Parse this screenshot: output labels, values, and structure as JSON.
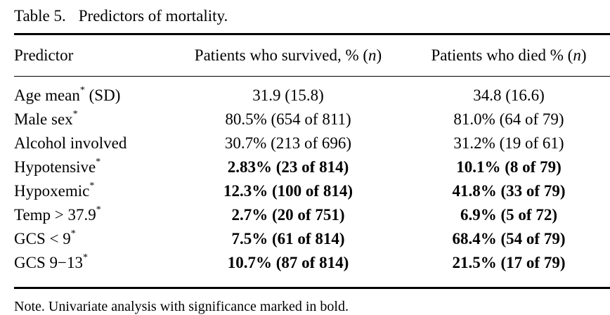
{
  "caption": {
    "label": "Table 5.",
    "title": "Predictors of mortality."
  },
  "header": {
    "predictor": "Predictor",
    "survived_text": "Patients who survived, % (",
    "survived_n": "n",
    "survived_close": ")",
    "died_text": "Patients who died % (",
    "died_n": "n",
    "died_close": ")"
  },
  "rows": [
    {
      "label": "Age mean",
      "mark": "*",
      "suffix": " (SD)",
      "survived": "31.9 (15.8)",
      "died": "34.8 (16.6)",
      "bold": false
    },
    {
      "label": "Male sex",
      "mark": "*",
      "suffix": "",
      "survived": "80.5% (654 of 811)",
      "died": "81.0% (64 of 79)",
      "bold": false
    },
    {
      "label": "Alcohol involved",
      "mark": "",
      "suffix": "",
      "survived": "30.7% (213 of 696)",
      "died": "31.2% (19 of 61)",
      "bold": false
    },
    {
      "label": "Hypotensive",
      "mark": "*",
      "suffix": "",
      "survived": "2.83% (23 of 814)",
      "died": "10.1% (8 of 79)",
      "bold": true
    },
    {
      "label": "Hypoxemic",
      "mark": "*",
      "suffix": "",
      "survived": "12.3% (100 of 814)",
      "died": "41.8% (33 of 79)",
      "bold": true
    },
    {
      "label": "Temp > 37.9",
      "mark": "*",
      "suffix": "",
      "survived": "2.7% (20 of 751)",
      "died": "6.9% (5 of 72)",
      "bold": true
    },
    {
      "label": "GCS < 9",
      "mark": "*",
      "suffix": "",
      "survived": "7.5% (61 of 814)",
      "died": "68.4% (54 of 79)",
      "bold": true
    },
    {
      "label": "GCS 9−13",
      "mark": "*",
      "suffix": "",
      "survived": "10.7% (87 of 814)",
      "died": "21.5% (17 of 79)",
      "bold": true
    }
  ],
  "footnote": "Note. Univariate analysis with significance marked in bold."
}
